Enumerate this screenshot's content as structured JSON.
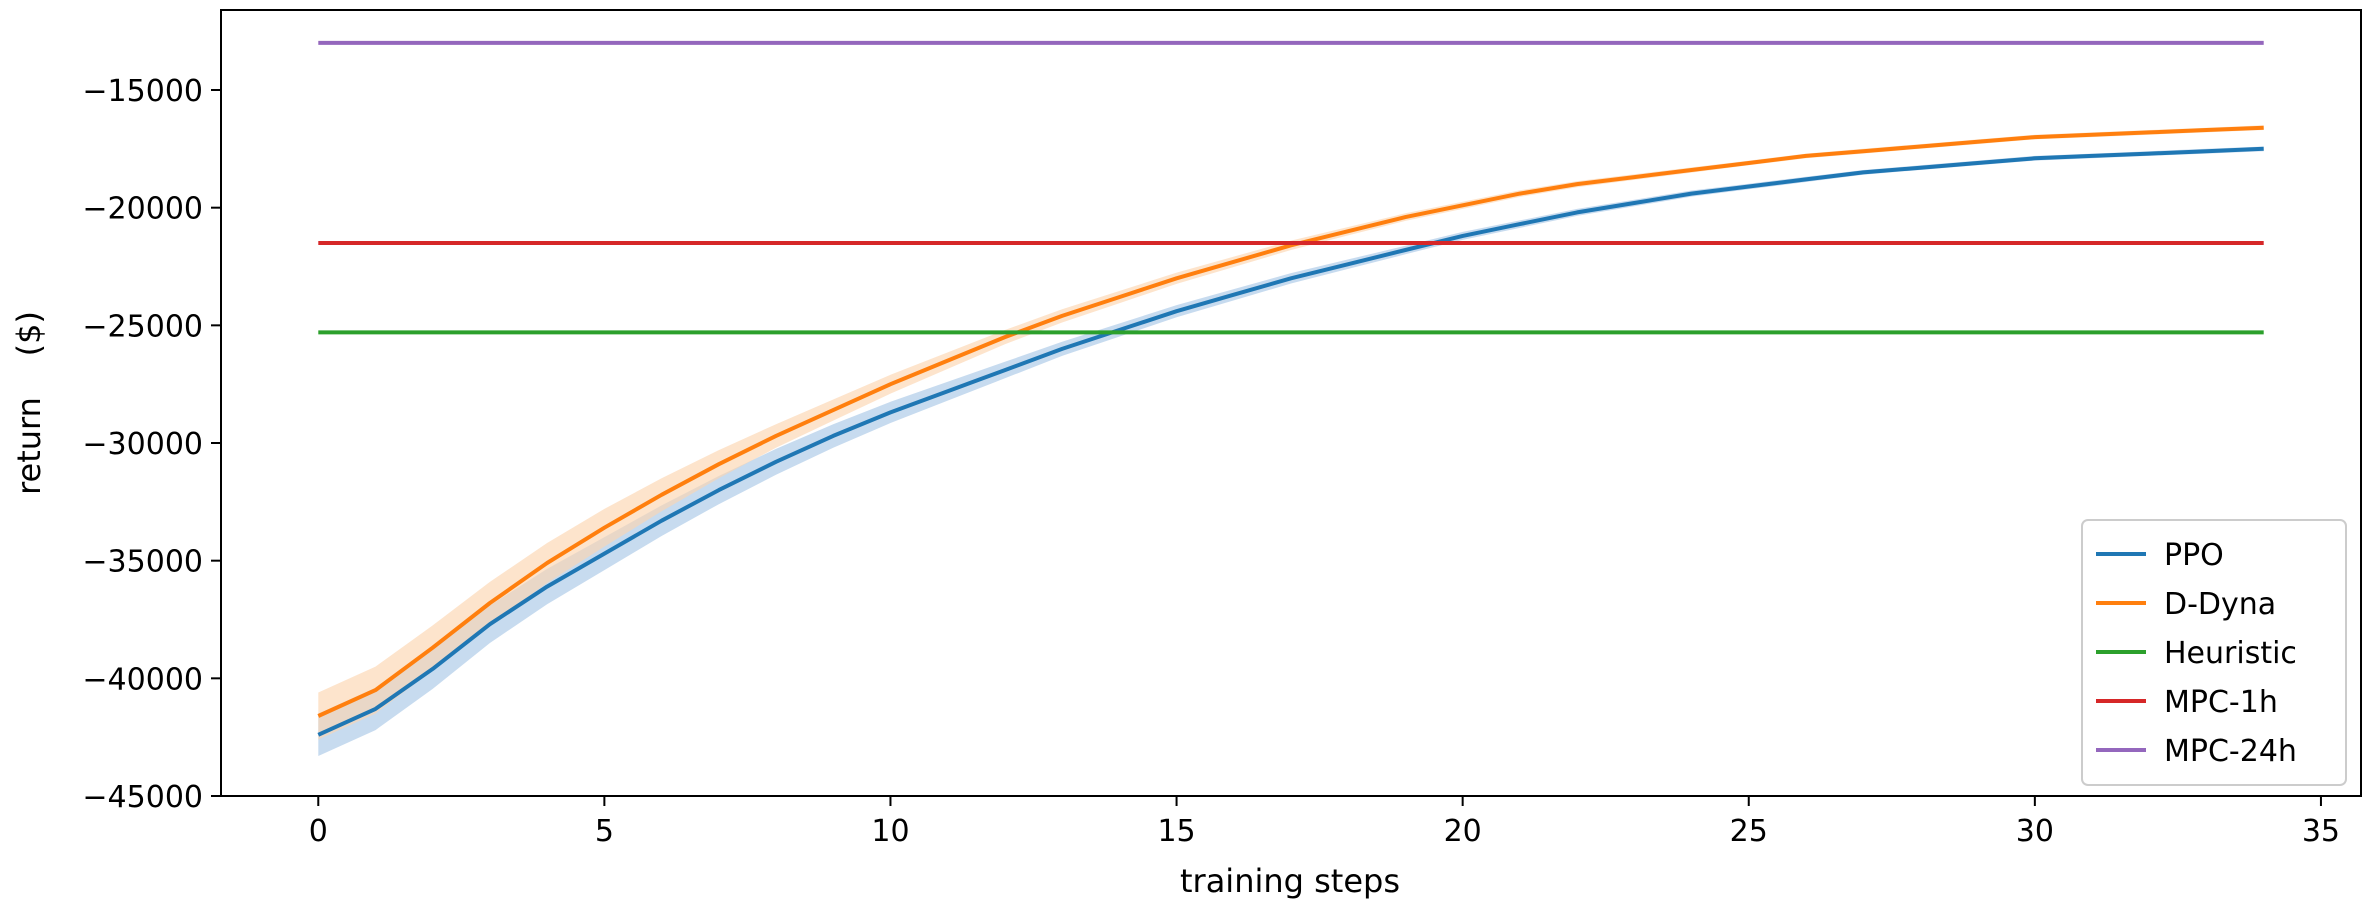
{
  "chart_data": {
    "type": "line",
    "title": "",
    "xlabel": "training steps",
    "ylabel": "return    ($)",
    "xlim": [
      -1.7,
      35.7
    ],
    "ylim": [
      -45000,
      -11600
    ],
    "xticks": [
      0,
      5,
      10,
      15,
      20,
      25,
      30,
      35
    ],
    "yticks": [
      -45000,
      -40000,
      -35000,
      -30000,
      -25000,
      -20000,
      -15000
    ],
    "xtick_labels": [
      "0",
      "5",
      "10",
      "15",
      "20",
      "25",
      "30",
      "35"
    ],
    "ytick_labels": [
      "−45000",
      "−40000",
      "−35000",
      "−30000",
      "−25000",
      "−20000",
      "−15000"
    ],
    "grid": false,
    "legend_position": "lower-right",
    "series": [
      {
        "name": "PPO",
        "color": "#1f77b4",
        "band_color": "#a9c8e6",
        "x": [
          0,
          1,
          2,
          3,
          4,
          5,
          6,
          7,
          8,
          9,
          10,
          11,
          12,
          13,
          14,
          15,
          16,
          17,
          18,
          19,
          20,
          21,
          22,
          23,
          24,
          25,
          26,
          27,
          28,
          29,
          30,
          31,
          32,
          33,
          34
        ],
        "y": [
          -42400,
          -41300,
          -39600,
          -37700,
          -36100,
          -34700,
          -33300,
          -32000,
          -30800,
          -29700,
          -28700,
          -27800,
          -26900,
          -26000,
          -25200,
          -24400,
          -23700,
          -23000,
          -22400,
          -21800,
          -21200,
          -20700,
          -20200,
          -19800,
          -19400,
          -19100,
          -18800,
          -18500,
          -18300,
          -18100,
          -17900,
          -17800,
          -17700,
          -17600,
          -17500
        ],
        "band_halfwidth": [
          900,
          900,
          850,
          800,
          750,
          700,
          650,
          600,
          550,
          500,
          450,
          400,
          350,
          300,
          280,
          260,
          240,
          220,
          200,
          180,
          170,
          160,
          150,
          140,
          130,
          120,
          110,
          100,
          100,
          100,
          100,
          100,
          100,
          100,
          100
        ]
      },
      {
        "name": "D-Dyna",
        "color": "#ff7f0e",
        "band_color": "#fcd5b0",
        "x": [
          0,
          1,
          2,
          3,
          4,
          5,
          6,
          7,
          8,
          9,
          10,
          11,
          12,
          13,
          14,
          15,
          16,
          17,
          18,
          19,
          20,
          21,
          22,
          23,
          24,
          25,
          26,
          27,
          28,
          29,
          30,
          31,
          32,
          33,
          34
        ],
        "y": [
          -41600,
          -40500,
          -38700,
          -36800,
          -35100,
          -33600,
          -32200,
          -30900,
          -29700,
          -28600,
          -27500,
          -26500,
          -25500,
          -24600,
          -23800,
          -23000,
          -22300,
          -21600,
          -21000,
          -20400,
          -19900,
          -19400,
          -19000,
          -18700,
          -18400,
          -18100,
          -17800,
          -17600,
          -17400,
          -17200,
          -17000,
          -16900,
          -16800,
          -16700,
          -16600
        ],
        "band_halfwidth": [
          1000,
          1000,
          950,
          900,
          850,
          800,
          700,
          600,
          500,
          450,
          400,
          350,
          300,
          280,
          260,
          240,
          220,
          200,
          180,
          160,
          150,
          140,
          130,
          120,
          110,
          100,
          100,
          100,
          100,
          100,
          100,
          100,
          100,
          100,
          100
        ]
      },
      {
        "name": "Heuristic",
        "color": "#2ca02c",
        "x": [
          0,
          34
        ],
        "y": [
          -25300,
          -25300
        ]
      },
      {
        "name": "MPC-1h",
        "color": "#d62728",
        "x": [
          0,
          34
        ],
        "y": [
          -21500,
          -21500
        ]
      },
      {
        "name": "MPC-24h",
        "color": "#9467bd",
        "x": [
          0,
          34
        ],
        "y": [
          -13000,
          -13000
        ]
      }
    ]
  }
}
